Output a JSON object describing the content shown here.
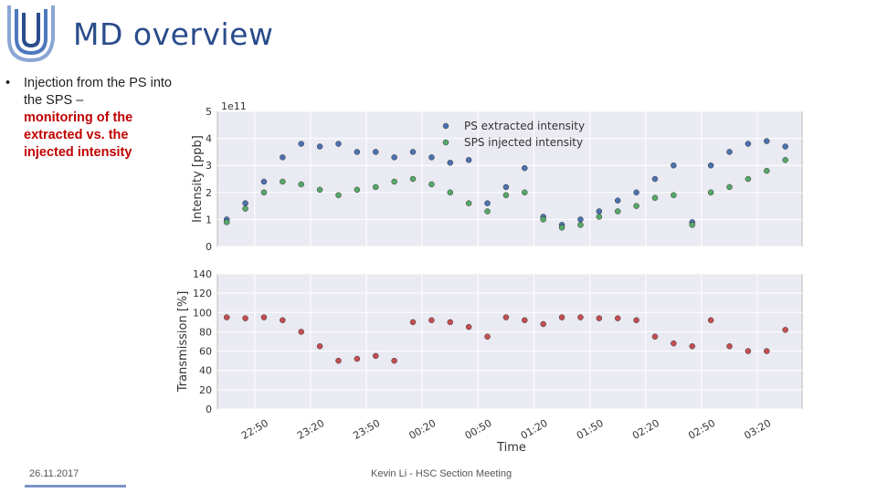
{
  "slide": {
    "title": "MD overview",
    "bullet": {
      "marker": "•",
      "text": "Injection from the PS into the SPS –",
      "highlight": "monitoring of the extracted vs. the injected intensity"
    },
    "footer": {
      "date": "26.11.2017",
      "center": "Kevin Li - HSC Section Meeting"
    },
    "colors": {
      "title": "#2a4c8c",
      "highlight": "#c00000",
      "ps_series": "#4a72b0",
      "sps_series": "#55a868",
      "transmission_series": "#c44e52",
      "plot_background": "#eaeaf2"
    }
  },
  "chart_data": [
    {
      "type": "scatter",
      "ylabel": "Intensity [ppb]",
      "y_multiplier_label": "1e11",
      "ylim": [
        0,
        5
      ],
      "yticks": [
        "0",
        "1",
        "2",
        "3",
        "4",
        "5"
      ],
      "grid": true,
      "legend_position": "top-right",
      "series": [
        {
          "name": "PS extracted intensity",
          "x": [
            "22:35",
            "22:45",
            "22:55",
            "23:05",
            "23:15",
            "23:25",
            "23:35",
            "23:45",
            "23:55",
            "00:05",
            "00:15",
            "00:25",
            "00:35",
            "00:45",
            "00:55",
            "01:05",
            "01:15",
            "01:25",
            "01:35",
            "01:45",
            "01:55",
            "02:05",
            "02:15",
            "02:25",
            "02:35",
            "02:45",
            "02:55",
            "03:05",
            "03:15",
            "03:25",
            "03:35"
          ],
          "y": [
            1.0,
            1.6,
            2.4,
            3.3,
            3.8,
            3.7,
            3.8,
            3.5,
            3.5,
            3.3,
            3.5,
            3.3,
            3.1,
            3.2,
            1.6,
            2.2,
            2.9,
            1.1,
            0.8,
            1.0,
            1.3,
            1.7,
            2.0,
            2.5,
            3.0,
            0.9,
            3.0,
            3.5,
            3.8,
            3.9,
            3.7
          ]
        },
        {
          "name": "SPS injected intensity",
          "x": [
            "22:35",
            "22:45",
            "22:55",
            "23:05",
            "23:15",
            "23:25",
            "23:35",
            "23:45",
            "23:55",
            "00:05",
            "00:15",
            "00:25",
            "00:35",
            "00:45",
            "00:55",
            "01:05",
            "01:15",
            "01:25",
            "01:35",
            "01:45",
            "01:55",
            "02:05",
            "02:15",
            "02:25",
            "02:35",
            "02:45",
            "02:55",
            "03:05",
            "03:15",
            "03:25",
            "03:35"
          ],
          "y": [
            0.9,
            1.4,
            2.0,
            2.4,
            2.3,
            2.1,
            1.9,
            2.1,
            2.2,
            2.4,
            2.5,
            2.3,
            2.0,
            1.6,
            1.3,
            1.9,
            2.0,
            1.0,
            0.7,
            0.8,
            1.1,
            1.3,
            1.5,
            1.8,
            1.9,
            0.8,
            2.0,
            2.2,
            2.5,
            2.8,
            3.2
          ]
        }
      ]
    },
    {
      "type": "scatter",
      "xlabel": "Time",
      "ylabel": "Transmission [%]",
      "ylim": [
        0,
        140
      ],
      "yticks": [
        "0",
        "20",
        "40",
        "60",
        "80",
        "100",
        "120",
        "140"
      ],
      "xticks": [
        "22:50",
        "23:20",
        "23:50",
        "00:20",
        "00:50",
        "01:20",
        "01:50",
        "02:20",
        "02:50",
        "03:20"
      ],
      "grid": true,
      "series": [
        {
          "x": [
            "22:35",
            "22:45",
            "22:55",
            "23:05",
            "23:15",
            "23:25",
            "23:35",
            "23:45",
            "23:55",
            "00:05",
            "00:15",
            "00:25",
            "00:35",
            "00:45",
            "00:55",
            "01:05",
            "01:15",
            "01:25",
            "01:35",
            "01:45",
            "01:55",
            "02:05",
            "02:15",
            "02:25",
            "02:35",
            "02:45",
            "02:55",
            "03:05",
            "03:15",
            "03:25",
            "03:35"
          ],
          "y": [
            95,
            94,
            95,
            92,
            80,
            65,
            50,
            52,
            55,
            50,
            90,
            92,
            90,
            85,
            75,
            95,
            92,
            88,
            95,
            95,
            94,
            94,
            92,
            75,
            68,
            65,
            92,
            65,
            60,
            60,
            82
          ]
        }
      ]
    }
  ]
}
